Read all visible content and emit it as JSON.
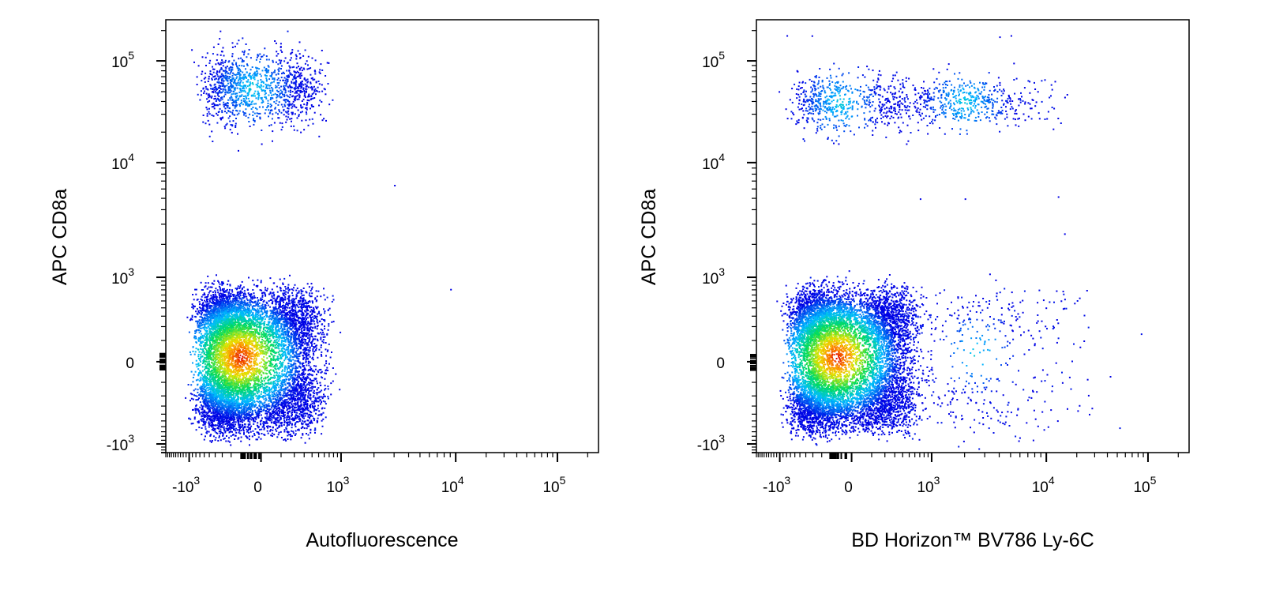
{
  "chart_data": [
    {
      "type": "scatter",
      "subtype": "flow-cytometry-density-dot-plot",
      "xlabel": "Autofluorescence",
      "ylabel": "APC CD8a",
      "x_scale": "biexponential",
      "y_scale": "biexponential",
      "xlim": [
        -2000,
        200000
      ],
      "ylim": [
        -1300,
        200000
      ],
      "xticks": [
        {
          "value": -1000,
          "base": "-10",
          "exp": "3"
        },
        {
          "value": 0,
          "base": "0",
          "exp": ""
        },
        {
          "value": 1000,
          "base": "10",
          "exp": "3"
        },
        {
          "value": 10000,
          "base": "10",
          "exp": "4"
        },
        {
          "value": 100000,
          "base": "10",
          "exp": "5"
        }
      ],
      "yticks": [
        {
          "value": -1000,
          "base": "-10",
          "exp": "3"
        },
        {
          "value": 0,
          "base": "0",
          "exp": ""
        },
        {
          "value": 1000,
          "base": "10",
          "exp": "3"
        },
        {
          "value": 10000,
          "base": "10",
          "exp": "4"
        },
        {
          "value": 100000,
          "base": "10",
          "exp": "5"
        }
      ],
      "populations": [
        {
          "center_x": -120,
          "center_y": 20,
          "spread_x": 280,
          "spread_y": 300,
          "relative_count": 1.0,
          "description": "CD8a-negative"
        },
        {
          "center_x": -40,
          "center_y": 55000,
          "spread_x": 260,
          "spread_y": 0.18,
          "relative_count": 0.14,
          "description": "CD8a-positive"
        }
      ],
      "outliers": [
        [
          3000,
          6500
        ],
        [
          9000,
          720
        ]
      ]
    },
    {
      "type": "scatter",
      "subtype": "flow-cytometry-density-dot-plot",
      "xlabel": "BD Horizon™ BV786 Ly-6C",
      "ylabel": "APC CD8a",
      "x_scale": "biexponential",
      "y_scale": "biexponential",
      "xlim": [
        -2000,
        200000
      ],
      "ylim": [
        -1300,
        200000
      ],
      "xticks": [
        {
          "value": -1000,
          "base": "-10",
          "exp": "3"
        },
        {
          "value": 0,
          "base": "0",
          "exp": ""
        },
        {
          "value": 1000,
          "base": "10",
          "exp": "3"
        },
        {
          "value": 10000,
          "base": "10",
          "exp": "4"
        },
        {
          "value": 100000,
          "base": "10",
          "exp": "5"
        }
      ],
      "yticks": [
        {
          "value": -1000,
          "base": "-10",
          "exp": "3"
        },
        {
          "value": 0,
          "base": "0",
          "exp": ""
        },
        {
          "value": 1000,
          "base": "10",
          "exp": "3"
        },
        {
          "value": 10000,
          "base": "10",
          "exp": "4"
        },
        {
          "value": 100000,
          "base": "10",
          "exp": "5"
        }
      ],
      "populations": [
        {
          "center_x": -80,
          "center_y": 20,
          "spread_x": 280,
          "spread_y": 300,
          "relative_count": 1.0,
          "description": "CD8a-negative Ly-6C-negative"
        },
        {
          "center_x": 2500,
          "center_y": 40,
          "spread_x": 0.45,
          "spread_y": 330,
          "relative_count": 0.05,
          "description": "CD8a-negative Ly-6C-positive"
        },
        {
          "center_x": -60,
          "center_y": 40000,
          "spread_x": 250,
          "spread_y": 0.15,
          "relative_count": 0.07,
          "description": "CD8a-positive Ly-6C-negative"
        },
        {
          "center_x": 2000,
          "center_y": 40000,
          "spread_x": 0.35,
          "spread_y": 0.12,
          "relative_count": 0.06,
          "description": "CD8a-positive Ly-6C-positive"
        }
      ],
      "outliers": [
        [
          -800,
          180000
        ],
        [
          4000,
          175000
        ],
        [
          5000,
          180000
        ],
        [
          700,
          5000
        ],
        [
          2000,
          5000
        ],
        [
          13000,
          5200
        ],
        [
          15000,
          2500
        ]
      ]
    }
  ]
}
